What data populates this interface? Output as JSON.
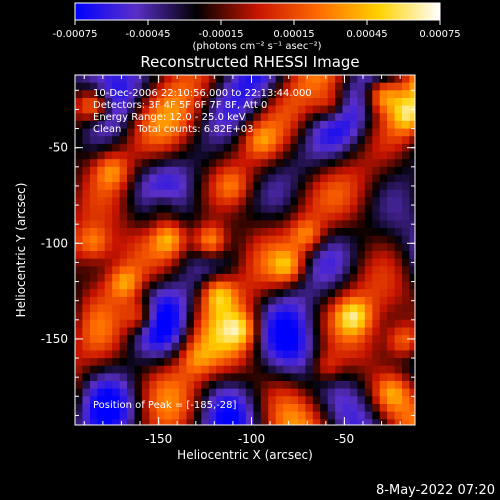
{
  "chart_data": {
    "type": "heatmap",
    "title": "Reconstructed RHESSI Image",
    "xlabel": "Heliocentric X (arcsec)",
    "ylabel": "Heliocentric Y (arcsec)",
    "xlim": [
      -195,
      -12
    ],
    "ylim": [
      -195,
      -12
    ],
    "xticks": [
      -150,
      -100,
      -50
    ],
    "yticks": [
      -50,
      -100,
      -150
    ],
    "colorbar": {
      "label": "(photons cm⁻² s⁻¹ asec⁻²)",
      "range": [
        -0.00075,
        0.00075
      ],
      "ticks": [
        "-0.00075",
        "-0.00045",
        "-0.00015",
        "0.00015",
        "0.00045",
        "0.00075"
      ],
      "colors": [
        "#0000ff",
        "#5a2fc8",
        "#000000",
        "#c81400",
        "#ff6a00",
        "#ffd200",
        "#ffffff"
      ]
    },
    "annotations": [
      "10-Dec-2006 22:10:56.000 to 22:13:44.000",
      "Detectors: 3F 4F 5F 6F 7F 8F, Att 0",
      "Energy Range: 12.0 - 25.0 keV",
      "Clean     Total counts: 6.82E+03"
    ],
    "peak_label": "Position of Peak = [-185,-28]",
    "peak": [
      -185,
      -28
    ],
    "bright_sources": [
      {
        "x": -185,
        "y": -28,
        "value": 0.00075
      },
      {
        "x": -122,
        "y": -99,
        "value": 0.0007
      },
      {
        "x": -144,
        "y": -97,
        "value": 0.0005
      },
      {
        "x": -160,
        "y": -138,
        "value": 0.00055
      },
      {
        "x": -168,
        "y": -121,
        "value": 0.00045
      },
      {
        "x": -118,
        "y": -126,
        "value": 0.0005
      },
      {
        "x": -105,
        "y": -145,
        "value": 0.0004
      },
      {
        "x": -80,
        "y": -112,
        "value": 0.00045
      },
      {
        "x": -70,
        "y": -96,
        "value": 0.00045
      },
      {
        "x": -30,
        "y": -22,
        "value": 0.0006
      },
      {
        "x": -57,
        "y": -28,
        "value": 0.00035
      },
      {
        "x": -15,
        "y": -33,
        "value": 0.0004
      },
      {
        "x": -45,
        "y": -138,
        "value": 0.00045
      },
      {
        "x": -18,
        "y": -151,
        "value": 0.0005
      },
      {
        "x": -60,
        "y": -165,
        "value": 0.00035
      },
      {
        "x": -25,
        "y": -178,
        "value": 0.00035
      },
      {
        "x": -185,
        "y": -100,
        "value": 0.0004
      },
      {
        "x": -175,
        "y": -62,
        "value": 0.00035
      },
      {
        "x": -148,
        "y": -80,
        "value": 0.0003
      },
      {
        "x": -110,
        "y": -70,
        "value": 0.00025
      },
      {
        "x": -95,
        "y": -46,
        "value": 0.0003
      },
      {
        "x": -130,
        "y": -160,
        "value": 0.00025
      }
    ]
  },
  "timestamp": "8-May-2022 07:20"
}
